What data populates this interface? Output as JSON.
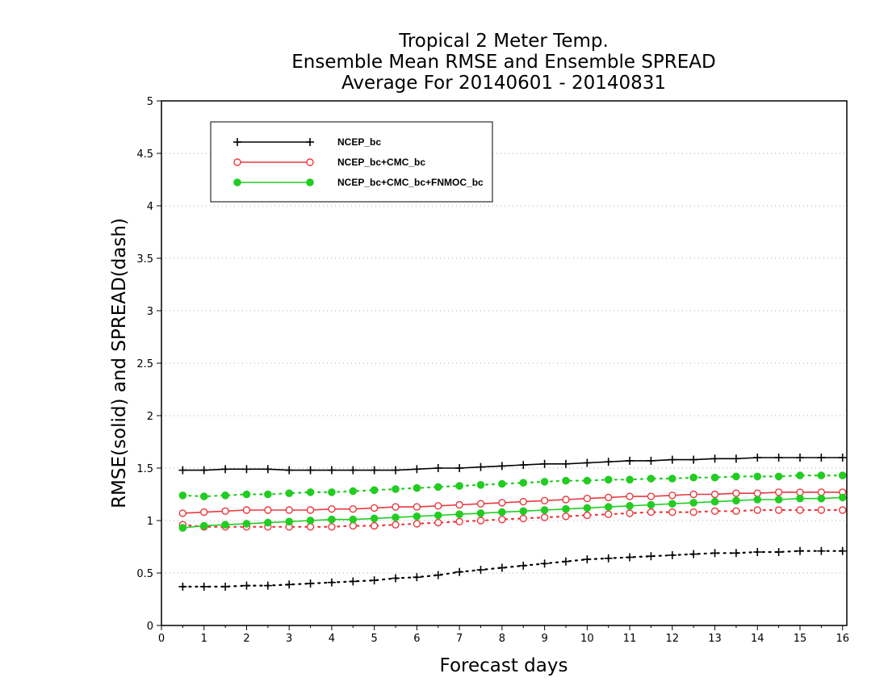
{
  "chart_data": {
    "type": "line",
    "title": [
      "Tropical 2 Meter Temp.",
      "Ensemble Mean RMSE and Ensemble SPREAD",
      "Average For 20140601 - 20140831"
    ],
    "xlabel": "Forecast days",
    "ylabel": "RMSE(solid) and SPREAD(dash)",
    "xlim": [
      0,
      16.1
    ],
    "ylim": [
      0,
      5
    ],
    "x_ticks": [
      "0",
      "1",
      "2",
      "3",
      "4",
      "5",
      "6",
      "7",
      "8",
      "9",
      "10",
      "11",
      "12",
      "13",
      "14",
      "15",
      "16"
    ],
    "y_ticks": [
      "0",
      "0.5",
      "1",
      "1.5",
      "2",
      "2.5",
      "3",
      "3.5",
      "4",
      "4.5",
      "5"
    ],
    "grid": "horizontal dotted",
    "legend_position": "top-left",
    "x": [
      0.5,
      1,
      1.5,
      2,
      2.5,
      3,
      3.5,
      4,
      4.5,
      5,
      5.5,
      6,
      6.5,
      7,
      7.5,
      8,
      8.5,
      9,
      9.5,
      10,
      10.5,
      11,
      11.5,
      12,
      12.5,
      13,
      13.5,
      14,
      14.5,
      15,
      15.5,
      16
    ],
    "series": [
      {
        "name": "NCEP_bc",
        "color": "#000000",
        "marker": "plus",
        "rmse": [
          1.48,
          1.48,
          1.49,
          1.49,
          1.49,
          1.48,
          1.48,
          1.48,
          1.48,
          1.48,
          1.48,
          1.49,
          1.5,
          1.5,
          1.51,
          1.52,
          1.53,
          1.54,
          1.54,
          1.55,
          1.56,
          1.57,
          1.57,
          1.58,
          1.58,
          1.59,
          1.59,
          1.6,
          1.6,
          1.6,
          1.6,
          1.6
        ],
        "spread": [
          0.37,
          0.37,
          0.37,
          0.38,
          0.38,
          0.39,
          0.4,
          0.41,
          0.42,
          0.43,
          0.45,
          0.46,
          0.48,
          0.51,
          0.53,
          0.55,
          0.57,
          0.59,
          0.61,
          0.63,
          0.64,
          0.65,
          0.66,
          0.67,
          0.68,
          0.69,
          0.69,
          0.7,
          0.7,
          0.71,
          0.71,
          0.71
        ]
      },
      {
        "name": "NCEP_bc+CMC_bc",
        "color": "#e8393e",
        "marker": "open-circle",
        "rmse": [
          1.07,
          1.08,
          1.09,
          1.1,
          1.1,
          1.1,
          1.1,
          1.11,
          1.11,
          1.12,
          1.13,
          1.13,
          1.14,
          1.15,
          1.16,
          1.17,
          1.18,
          1.19,
          1.2,
          1.21,
          1.22,
          1.23,
          1.23,
          1.24,
          1.25,
          1.25,
          1.26,
          1.26,
          1.27,
          1.27,
          1.27,
          1.27
        ],
        "spread": [
          0.96,
          0.94,
          0.94,
          0.94,
          0.94,
          0.94,
          0.94,
          0.94,
          0.95,
          0.95,
          0.96,
          0.97,
          0.98,
          0.99,
          1.0,
          1.01,
          1.02,
          1.03,
          1.04,
          1.05,
          1.06,
          1.07,
          1.08,
          1.08,
          1.08,
          1.09,
          1.09,
          1.1,
          1.1,
          1.1,
          1.1,
          1.1
        ]
      },
      {
        "name": "NCEP_bc+CMC_bc+FNMOC_bc",
        "color": "#22cc22",
        "marker": "filled-circle",
        "rmse": [
          0.93,
          0.95,
          0.96,
          0.97,
          0.98,
          0.99,
          1.0,
          1.01,
          1.01,
          1.02,
          1.03,
          1.04,
          1.05,
          1.06,
          1.07,
          1.08,
          1.09,
          1.1,
          1.11,
          1.12,
          1.13,
          1.14,
          1.15,
          1.16,
          1.17,
          1.18,
          1.19,
          1.2,
          1.2,
          1.21,
          1.21,
          1.22
        ],
        "spread": [
          1.24,
          1.23,
          1.24,
          1.25,
          1.25,
          1.26,
          1.27,
          1.27,
          1.28,
          1.29,
          1.3,
          1.31,
          1.32,
          1.33,
          1.34,
          1.35,
          1.36,
          1.37,
          1.38,
          1.38,
          1.39,
          1.39,
          1.4,
          1.4,
          1.41,
          1.41,
          1.42,
          1.42,
          1.42,
          1.43,
          1.43,
          1.43
        ]
      }
    ]
  }
}
